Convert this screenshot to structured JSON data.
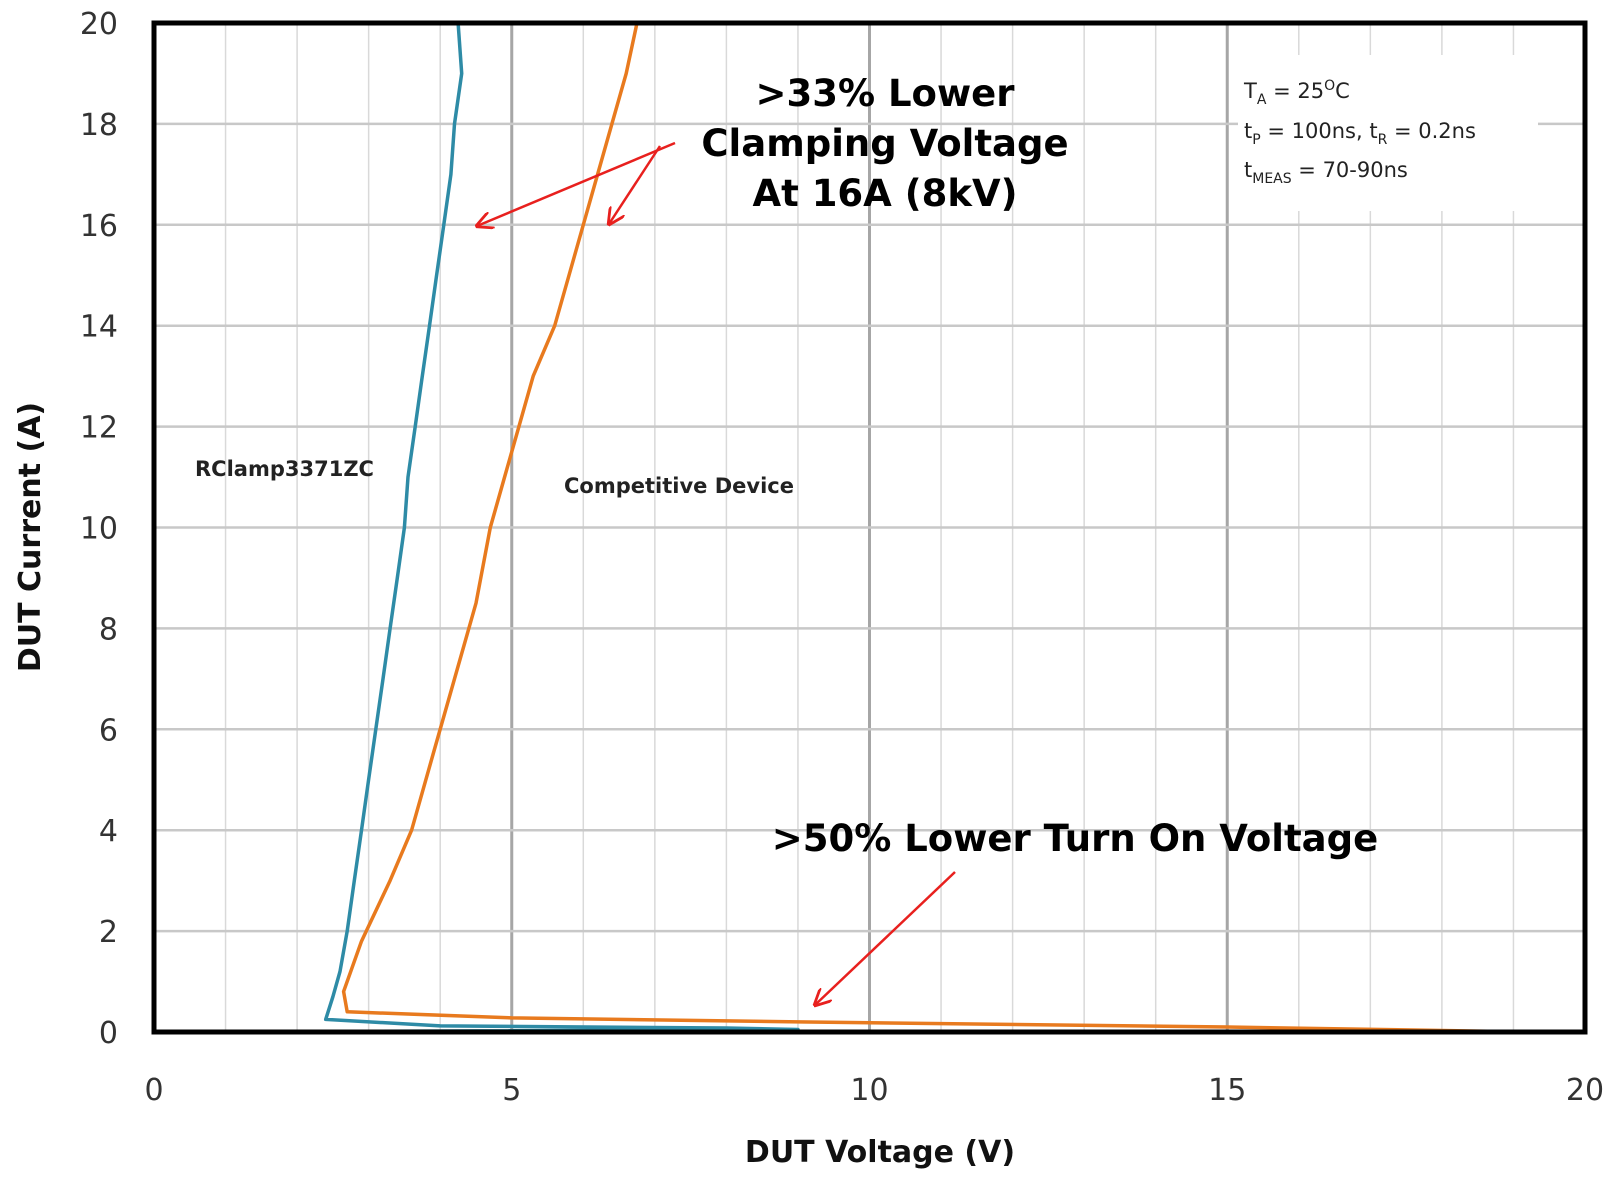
{
  "chart_data": {
    "type": "line",
    "xlabel": "DUT Voltage (V)",
    "ylabel": "DUT Current (A)",
    "xlim": [
      0,
      20
    ],
    "ylim": [
      0,
      20
    ],
    "x_ticks": [
      "0",
      "5",
      "10",
      "15",
      "20"
    ],
    "y_ticks": [
      "0",
      "2",
      "4",
      "6",
      "8",
      "10",
      "12",
      "14",
      "16",
      "18",
      "20"
    ],
    "grid": true,
    "series": [
      {
        "name": "RClamp3371ZC",
        "color": "#2E8BA6",
        "points": [
          [
            0.9,
            0.0
          ],
          [
            9.0,
            0.05
          ],
          [
            8.0,
            0.08
          ],
          [
            4.0,
            0.12
          ],
          [
            2.4,
            0.25
          ],
          [
            2.5,
            0.7
          ],
          [
            2.6,
            1.2
          ],
          [
            2.7,
            2.0
          ],
          [
            2.8,
            3.0
          ],
          [
            2.9,
            4.0
          ],
          [
            3.0,
            5.0
          ],
          [
            3.1,
            6.0
          ],
          [
            3.2,
            7.0
          ],
          [
            3.3,
            8.0
          ],
          [
            3.4,
            9.0
          ],
          [
            3.5,
            10.0
          ],
          [
            3.55,
            11.0
          ],
          [
            3.65,
            12.0
          ],
          [
            3.75,
            13.0
          ],
          [
            3.85,
            14.0
          ],
          [
            3.95,
            15.0
          ],
          [
            4.05,
            16.0
          ],
          [
            4.15,
            17.0
          ],
          [
            4.2,
            18.0
          ],
          [
            4.3,
            19.0
          ],
          [
            4.25,
            20.0
          ]
        ]
      },
      {
        "name": "Competitive Device",
        "color": "#E87A1E",
        "points": [
          [
            19.3,
            0.0
          ],
          [
            15.0,
            0.1
          ],
          [
            9.0,
            0.2
          ],
          [
            5.0,
            0.28
          ],
          [
            2.7,
            0.4
          ],
          [
            2.65,
            0.8
          ],
          [
            2.9,
            1.8
          ],
          [
            3.3,
            3.0
          ],
          [
            3.6,
            4.0
          ],
          [
            3.9,
            5.5
          ],
          [
            4.2,
            7.0
          ],
          [
            4.5,
            8.5
          ],
          [
            4.7,
            10.0
          ],
          [
            4.9,
            11.0
          ],
          [
            5.1,
            12.0
          ],
          [
            5.3,
            13.0
          ],
          [
            5.6,
            14.0
          ],
          [
            5.8,
            15.0
          ],
          [
            6.0,
            16.0
          ],
          [
            6.2,
            17.0
          ],
          [
            6.4,
            18.0
          ],
          [
            6.6,
            19.0
          ],
          [
            6.75,
            20.0
          ]
        ]
      }
    ],
    "series_labels": [
      "RClamp3371ZC",
      "Competitive Device"
    ],
    "annotations": {
      "clamp_line1": ">33% Lower",
      "clamp_line2": "Clamping Voltage",
      "clamp_line3": "At 16A (8kV)",
      "turnon": ">50% Lower Turn On Voltage"
    },
    "conditions": {
      "line1_main": "T",
      "line1_sub": "A",
      "line1_rest": " = 25",
      "line1_sup": "O",
      "line1_end": "C",
      "line2_a": "t",
      "line2_a_sub": "P",
      "line2_b": " = 100ns, t",
      "line2_b_sub": "R",
      "line2_c": " = 0.2ns",
      "line3_a": "t",
      "line3_a_sub": "MEAS",
      "line3_b": " = 70-90ns"
    },
    "annotation_color": "#E8201E"
  }
}
